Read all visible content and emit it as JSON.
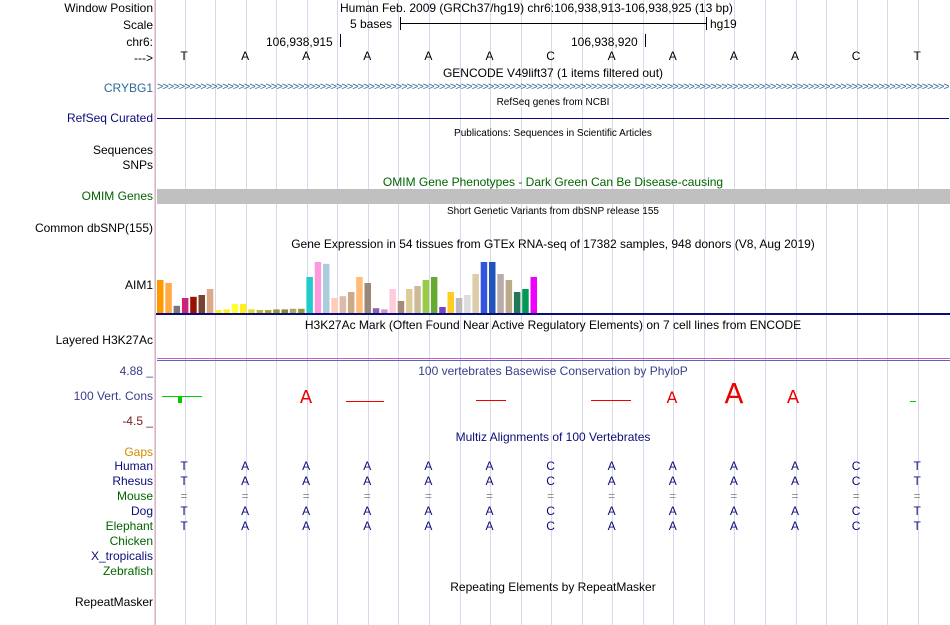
{
  "header": {
    "window_position_label": "Window Position",
    "window_position_value": "Human Feb. 2009 (GRCh37/hg19)   chr6:106,938,913-106,938,925 (13 bp)",
    "scale_label": "Scale",
    "scale_text": "5 bases",
    "scale_db": "hg19",
    "chrom_label": "chr6:",
    "pos1": "106,938,915",
    "pos2": "106,938,920",
    "strand_label": "--->"
  },
  "bases": [
    "T",
    "A",
    "A",
    "A",
    "A",
    "A",
    "C",
    "A",
    "A",
    "A",
    "A",
    "C",
    "T"
  ],
  "tracks": {
    "gencode_title": "GENCODE V49lift37 (1 items filtered out)",
    "gencode_gene": "CRYBG1",
    "refseq_title": "RefSeq genes from NCBI",
    "refseq_label": "RefSeq Curated",
    "pubs_title": "Publications: Sequences in Scientific Articles",
    "sequences_label": "Sequences",
    "snps_label": "SNPs",
    "omim_title": "OMIM Gene Phenotypes - Dark Green Can Be Disease-causing",
    "omim_label": "OMIM Genes",
    "dbsnp_title": "Short Genetic Variants from dbSNP release 155",
    "dbsnp_label": "Common dbSNP(155)",
    "gtex_title": "Gene Expression in 54 tissues from GTEx RNA-seq of 17382 samples, 948 donors (V8, Aug 2019)",
    "gtex_gene": "AIM1",
    "h3k27ac_title": "H3K27Ac Mark (Often Found Near Active Regulatory Elements) on 7 cell lines from ENCODE",
    "h3k27ac_label": "Layered H3K27Ac",
    "phylop_title": "100 vertebrates Basewise Conservation by PhyloP",
    "phylop_label": "100 Vert. Cons",
    "phylop_max": "4.88 _",
    "phylop_min": "-4.5 _",
    "multiz_title": "Multiz Alignments of 100 Vertebrates",
    "gaps_label": "Gaps",
    "repeat_title": "Repeating Elements by RepeatMasker",
    "repeat_label": "RepeatMasker"
  },
  "species": [
    {
      "name": "Human",
      "seq": [
        "T",
        "A",
        "A",
        "A",
        "A",
        "A",
        "C",
        "A",
        "A",
        "A",
        "A",
        "C",
        "T"
      ]
    },
    {
      "name": "Rhesus",
      "seq": [
        "T",
        "A",
        "A",
        "A",
        "A",
        "A",
        "C",
        "A",
        "A",
        "A",
        "A",
        "C",
        "T"
      ]
    },
    {
      "name": "Mouse",
      "seq": [
        "=",
        "=",
        "=",
        "=",
        "=",
        "=",
        "=",
        "=",
        "=",
        "=",
        "=",
        "=",
        "="
      ]
    },
    {
      "name": "Dog",
      "seq": [
        "T",
        "A",
        "A",
        "A",
        "A",
        "A",
        "C",
        "A",
        "A",
        "A",
        "A",
        "C",
        "T"
      ]
    },
    {
      "name": "Elephant",
      "seq": [
        "T",
        "A",
        "A",
        "A",
        "A",
        "A",
        "C",
        "A",
        "A",
        "A",
        "A",
        "C",
        "T"
      ]
    },
    {
      "name": "Chicken",
      "seq": []
    },
    {
      "name": "X_tropicalis",
      "seq": []
    },
    {
      "name": "Zebrafish",
      "seq": []
    }
  ],
  "gtex_colors": [
    "#ff9900",
    "#ffaa44",
    "#777777",
    "#cc2277",
    "#991100",
    "#774433",
    "#ddaa88",
    "#ffee22",
    "#ffee22",
    "#ffff33",
    "#ffee22",
    "#dddd33",
    "#bbbb33",
    "#aaaa33",
    "#999933",
    "#888833",
    "#aaaa66",
    "#999933",
    "#22cccc",
    "#ff99dd",
    "#aaccdd",
    "#ffccbb",
    "#ddbbaa",
    "#ccaa88",
    "#ffbb77",
    "#998877",
    "#8866aa",
    "#cc99cc",
    "#ffccdd",
    "#aa8877",
    "#ddcc99",
    "#ccbb99",
    "#99cc44",
    "#66aa33",
    "#7744bb",
    "#ffcc22",
    "#bbbbbb",
    "#dddddd",
    "#ddccaa",
    "#3355dd",
    "#2255bb",
    "#bbaaaa",
    "#bbaa88",
    "#227755",
    "#009955",
    "#ee00ff"
  ],
  "gtex_values": [
    0.55,
    0.5,
    0.12,
    0.25,
    0.27,
    0.3,
    0.4,
    0.05,
    0.06,
    0.15,
    0.15,
    0.06,
    0.05,
    0.05,
    0.06,
    0.06,
    0.07,
    0.07,
    0.6,
    0.85,
    0.82,
    0.25,
    0.28,
    0.35,
    0.6,
    0.5,
    0.08,
    0.06,
    0.4,
    0.2,
    0.4,
    0.45,
    0.55,
    0.6,
    0.1,
    0.35,
    0.25,
    0.3,
    0.65,
    0.85,
    0.85,
    0.65,
    0.55,
    0.35,
    0.4,
    0.6
  ],
  "gtex_heights": {
    "special_tall_index": 28
  }
}
